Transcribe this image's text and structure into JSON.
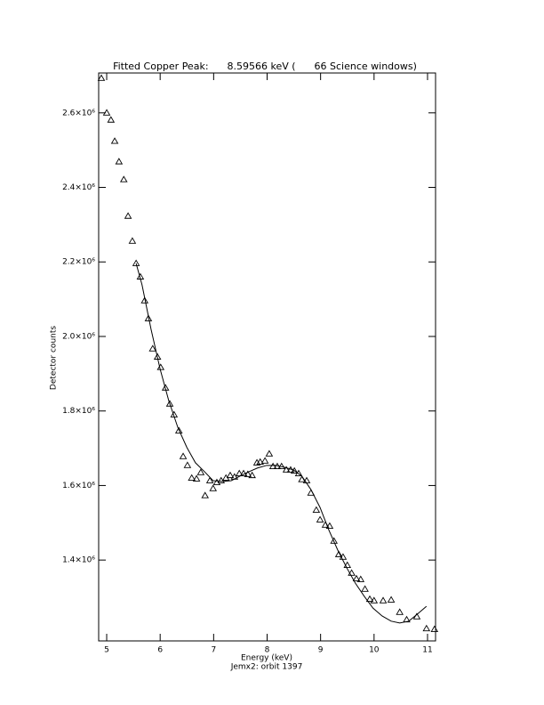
{
  "chart_data": {
    "type": "scatter",
    "title": "Fitted Copper Peak:      8.59566 keV (      66 Science windows)",
    "x_label": "Energy (keV)",
    "x_sublabel": "Jemx2: orbit 1397",
    "y_label": "Detector counts",
    "xlim": [
      4.85,
      11.15
    ],
    "ylim": [
      1183000,
      2707000
    ],
    "xticks": [
      5,
      6,
      7,
      8,
      9,
      10,
      11
    ],
    "yticks": [
      {
        "value": 1400000,
        "label": "1.4×10⁶"
      },
      {
        "value": 1600000,
        "label": "1.6×10⁶"
      },
      {
        "value": 1800000,
        "label": "1.8×10⁶"
      },
      {
        "value": 2000000,
        "label": "2.0×10⁶"
      },
      {
        "value": 2200000,
        "label": "2.2×10⁶"
      },
      {
        "value": 2400000,
        "label": "2.4×10⁶"
      },
      {
        "value": 2600000,
        "label": "2.6×10⁶"
      }
    ],
    "series": [
      {
        "marker": "triangle",
        "color": "#000000",
        "x": [
          4.9,
          5.0,
          5.08,
          5.15,
          5.23,
          5.32,
          5.4,
          5.48,
          5.55,
          5.63,
          5.71,
          5.78,
          5.86,
          5.95,
          6.01,
          6.1,
          6.18,
          6.26,
          6.35,
          6.43,
          6.51,
          6.59,
          6.68,
          6.76,
          6.84,
          6.93,
          6.99,
          7.06,
          7.14,
          7.23,
          7.31,
          7.39,
          7.48,
          7.56,
          7.64,
          7.72,
          7.81,
          7.87,
          7.96,
          8.04,
          8.11,
          8.19,
          8.27,
          8.36,
          8.44,
          8.51,
          8.59,
          8.65,
          8.74,
          8.82,
          8.92,
          8.99,
          9.09,
          9.17,
          9.25,
          9.34,
          9.42,
          9.5,
          9.58,
          9.67,
          9.75,
          9.83,
          9.92,
          10.0,
          10.17,
          10.32,
          10.48,
          10.61,
          10.8,
          10.98,
          11.13
        ],
        "values": [
          2693000,
          2600000,
          2581000,
          2524000,
          2469000,
          2421000,
          2323000,
          2256000,
          2196000,
          2160000,
          2096000,
          2048000,
          1967000,
          1945000,
          1917000,
          1862000,
          1819000,
          1790000,
          1747000,
          1678000,
          1654000,
          1620000,
          1618000,
          1635000,
          1573000,
          1613000,
          1592000,
          1608000,
          1613000,
          1620000,
          1627000,
          1623000,
          1632000,
          1632000,
          1630000,
          1627000,
          1661000,
          1663000,
          1666000,
          1685000,
          1651000,
          1651000,
          1651000,
          1642000,
          1642000,
          1639000,
          1632000,
          1616000,
          1613000,
          1580000,
          1534000,
          1508000,
          1494000,
          1491000,
          1451000,
          1415000,
          1408000,
          1386000,
          1365000,
          1350000,
          1348000,
          1322000,
          1295000,
          1291000,
          1291000,
          1293000,
          1260000,
          1240000,
          1248000,
          1216000,
          1214000
        ]
      },
      {
        "marker": "line",
        "color": "#000000",
        "x": [
          5.55,
          5.66,
          5.83,
          6.0,
          6.16,
          6.33,
          6.5,
          6.66,
          6.83,
          6.99,
          7.16,
          7.33,
          7.49,
          7.66,
          7.82,
          7.99,
          8.16,
          8.32,
          8.49,
          8.65,
          8.82,
          8.99,
          9.15,
          9.32,
          9.49,
          9.65,
          9.82,
          9.98,
          10.15,
          10.32,
          10.48,
          10.65,
          10.81,
          10.98
        ],
        "values": [
          2196000,
          2139000,
          2019000,
          1912000,
          1828000,
          1756000,
          1702000,
          1661000,
          1637000,
          1613000,
          1611000,
          1613000,
          1625000,
          1637000,
          1647000,
          1654000,
          1654000,
          1649000,
          1642000,
          1625000,
          1589000,
          1541000,
          1482000,
          1427000,
          1379000,
          1338000,
          1302000,
          1271000,
          1250000,
          1236000,
          1231000,
          1236000,
          1255000,
          1276000
        ]
      }
    ]
  }
}
